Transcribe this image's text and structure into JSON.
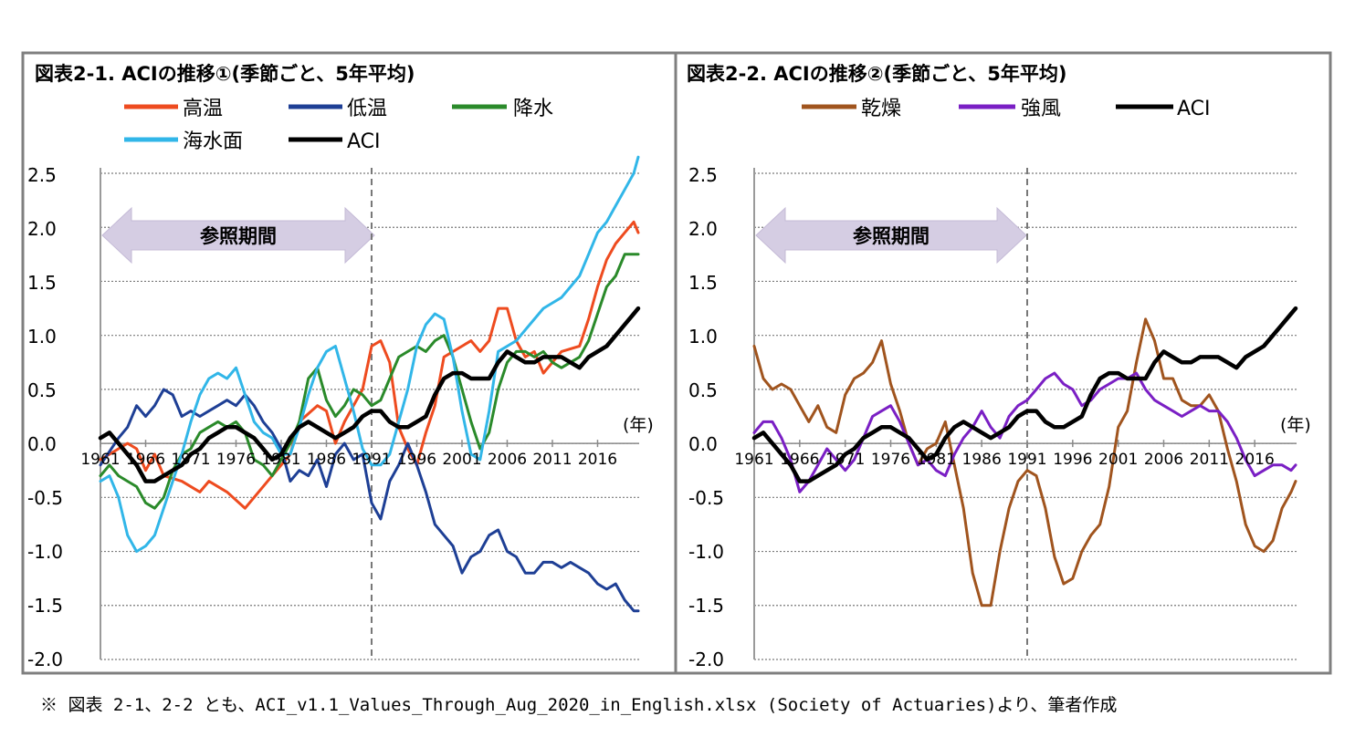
{
  "chart_data": [
    {
      "type": "line",
      "title": "図表2-1. ACIの推移①(季節ごと、5年平均)",
      "x_unit": "(年)",
      "x_ticks": [
        "1961",
        "1966",
        "1971",
        "1976",
        "1981",
        "1986",
        "1991",
        "1996",
        "2001",
        "2006",
        "2011",
        "2016"
      ],
      "xlim": [
        1961,
        2020.6
      ],
      "y_ticks": [
        "2.5",
        "2.0",
        "1.5",
        "1.0",
        "0.5",
        "0.0",
        "-0.5",
        "-1.0",
        "-1.5",
        "-2.0"
      ],
      "ylim": [
        -2.0,
        2.5
      ],
      "grid": true,
      "legend_position": "top-left",
      "reference_line_x": 1991,
      "reference_period": {
        "label": "参照期間",
        "from": 1961,
        "to": 1991
      },
      "series": [
        {
          "name": "高温",
          "color": "#ee4b1f",
          "x": [
            1961,
            1963,
            1964,
            1965,
            1966,
            1967,
            1968,
            1970,
            1972,
            1973,
            1975,
            1977,
            1978,
            1980,
            1982,
            1983,
            1985,
            1986,
            1987,
            1988,
            1990,
            1991,
            1992,
            1993,
            1994,
            1995,
            1996,
            1997,
            1998,
            1999,
            2001,
            2002,
            2003,
            2004,
            2005,
            2006,
            2007,
            2008,
            2009,
            2010,
            2011,
            2012,
            2014,
            2015,
            2016,
            2017,
            2018,
            2019,
            2020,
            2020.5
          ],
          "y": [
            -0.15,
            -0.05,
            0.0,
            -0.05,
            -0.25,
            -0.1,
            -0.3,
            -0.35,
            -0.45,
            -0.35,
            -0.45,
            -0.6,
            -0.5,
            -0.3,
            -0.1,
            0.2,
            0.35,
            0.3,
            0.0,
            0.2,
            0.5,
            0.9,
            0.95,
            0.75,
            0.15,
            -0.05,
            -0.2,
            0.1,
            0.35,
            0.8,
            0.9,
            0.95,
            0.85,
            0.95,
            1.25,
            1.25,
            0.95,
            0.8,
            0.85,
            0.65,
            0.75,
            0.85,
            0.9,
            1.15,
            1.45,
            1.7,
            1.85,
            1.95,
            2.05,
            1.95
          ]
        },
        {
          "name": "低温",
          "color": "#1e3f95",
          "x": [
            1961,
            1963,
            1964,
            1965,
            1966,
            1967,
            1968,
            1969,
            1970,
            1971,
            1972,
            1973,
            1974,
            1975,
            1976,
            1977,
            1978,
            1979,
            1980,
            1981,
            1982,
            1983,
            1984,
            1985,
            1986,
            1987,
            1988,
            1989,
            1990,
            1991,
            1992,
            1993,
            1994,
            1995,
            1996,
            1997,
            1998,
            1999,
            2000,
            2001,
            2002,
            2003,
            2004,
            2005,
            2006,
            2007,
            2008,
            2009,
            2010,
            2011,
            2012,
            2013,
            2014,
            2015,
            2016,
            2017,
            2018,
            2019,
            2020,
            2020.5
          ],
          "y": [
            -0.2,
            0.05,
            0.15,
            0.35,
            0.25,
            0.35,
            0.5,
            0.45,
            0.25,
            0.3,
            0.25,
            0.3,
            0.35,
            0.4,
            0.35,
            0.45,
            0.35,
            0.2,
            0.1,
            -0.05,
            -0.35,
            -0.25,
            -0.3,
            -0.15,
            -0.4,
            -0.1,
            0.0,
            -0.15,
            -0.1,
            -0.55,
            -0.7,
            -0.35,
            -0.2,
            0.0,
            -0.2,
            -0.45,
            -0.75,
            -0.85,
            -0.95,
            -1.2,
            -1.05,
            -1.0,
            -0.85,
            -0.8,
            -1.0,
            -1.05,
            -1.2,
            -1.2,
            -1.1,
            -1.1,
            -1.15,
            -1.1,
            -1.15,
            -1.2,
            -1.3,
            -1.35,
            -1.3,
            -1.45,
            -1.55,
            -1.55
          ]
        },
        {
          "name": "降水",
          "color": "#2a8a2a",
          "x": [
            1961,
            1962,
            1963,
            1964,
            1965,
            1966,
            1967,
            1968,
            1969,
            1970,
            1971,
            1972,
            1973,
            1974,
            1975,
            1976,
            1977,
            1978,
            1979,
            1980,
            1981,
            1982,
            1983,
            1984,
            1985,
            1986,
            1987,
            1988,
            1989,
            1990,
            1991,
            1992,
            1993,
            1994,
            1995,
            1996,
            1997,
            1998,
            1999,
            2000,
            2001,
            2002,
            2003,
            2004,
            2005,
            2006,
            2007,
            2008,
            2009,
            2010,
            2011,
            2012,
            2013,
            2014,
            2015,
            2016,
            2017,
            2018,
            2019,
            2020,
            2020.5
          ],
          "y": [
            -0.3,
            -0.2,
            -0.3,
            -0.35,
            -0.4,
            -0.55,
            -0.6,
            -0.5,
            -0.25,
            -0.1,
            -0.05,
            0.1,
            0.15,
            0.2,
            0.15,
            0.2,
            0.1,
            -0.15,
            -0.2,
            -0.3,
            -0.15,
            0.0,
            0.2,
            0.6,
            0.7,
            0.4,
            0.25,
            0.35,
            0.5,
            0.45,
            0.35,
            0.4,
            0.6,
            0.8,
            0.85,
            0.9,
            0.85,
            0.95,
            1.0,
            0.8,
            0.5,
            0.2,
            -0.05,
            0.1,
            0.5,
            0.75,
            0.85,
            0.85,
            0.8,
            0.85,
            0.75,
            0.7,
            0.75,
            0.8,
            0.95,
            1.2,
            1.45,
            1.55,
            1.75,
            1.75,
            1.75
          ]
        },
        {
          "name": "海水面",
          "color": "#31b6e8",
          "x": [
            1961,
            1962,
            1963,
            1964,
            1965,
            1966,
            1967,
            1968,
            1969,
            1970,
            1971,
            1972,
            1973,
            1974,
            1975,
            1976,
            1977,
            1978,
            1979,
            1980,
            1981,
            1982,
            1983,
            1984,
            1985,
            1986,
            1987,
            1988,
            1989,
            1990,
            1991,
            1992,
            1993,
            1994,
            1995,
            1996,
            1997,
            1998,
            1999,
            2000,
            2001,
            2002,
            2003,
            2004,
            2005,
            2006,
            2007,
            2008,
            2009,
            2010,
            2011,
            2012,
            2013,
            2014,
            2015,
            2016,
            2017,
            2018,
            2019,
            2020,
            2020.5
          ],
          "y": [
            -0.35,
            -0.3,
            -0.5,
            -0.85,
            -1.0,
            -0.95,
            -0.85,
            -0.6,
            -0.35,
            -0.1,
            0.2,
            0.45,
            0.6,
            0.65,
            0.6,
            0.7,
            0.45,
            0.2,
            0.1,
            0.05,
            -0.1,
            -0.1,
            0.15,
            0.45,
            0.7,
            0.85,
            0.9,
            0.6,
            0.3,
            -0.05,
            -0.2,
            -0.2,
            -0.1,
            0.2,
            0.5,
            0.9,
            1.1,
            1.2,
            1.15,
            0.8,
            0.3,
            -0.1,
            -0.15,
            0.3,
            0.85,
            0.9,
            0.95,
            1.05,
            1.15,
            1.25,
            1.3,
            1.35,
            1.45,
            1.55,
            1.75,
            1.95,
            2.05,
            2.2,
            2.35,
            2.5,
            2.65
          ]
        },
        {
          "name": "ACI",
          "color": "#000000",
          "x": [
            1961,
            1962,
            1963,
            1964,
            1965,
            1966,
            1967,
            1968,
            1969,
            1970,
            1971,
            1972,
            1973,
            1974,
            1975,
            1976,
            1977,
            1978,
            1979,
            1980,
            1981,
            1982,
            1983,
            1984,
            1985,
            1986,
            1987,
            1988,
            1989,
            1990,
            1991,
            1992,
            1993,
            1994,
            1995,
            1996,
            1997,
            1998,
            1999,
            2000,
            2001,
            2002,
            2003,
            2004,
            2005,
            2006,
            2007,
            2008,
            2009,
            2010,
            2011,
            2012,
            2013,
            2014,
            2015,
            2016,
            2017,
            2018,
            2019,
            2020,
            2020.5
          ],
          "y": [
            0.05,
            0.1,
            0.0,
            -0.1,
            -0.2,
            -0.35,
            -0.35,
            -0.3,
            -0.25,
            -0.2,
            -0.1,
            -0.05,
            0.05,
            0.1,
            0.15,
            0.15,
            0.1,
            0.05,
            -0.05,
            -0.15,
            -0.1,
            0.05,
            0.15,
            0.2,
            0.15,
            0.1,
            0.05,
            0.1,
            0.15,
            0.25,
            0.3,
            0.3,
            0.2,
            0.15,
            0.15,
            0.2,
            0.25,
            0.45,
            0.6,
            0.65,
            0.65,
            0.6,
            0.6,
            0.6,
            0.75,
            0.85,
            0.8,
            0.75,
            0.75,
            0.8,
            0.8,
            0.8,
            0.75,
            0.7,
            0.8,
            0.85,
            0.9,
            1.0,
            1.1,
            1.2,
            1.25
          ]
        }
      ]
    },
    {
      "type": "line",
      "title": "図表2-2. ACIの推移②(季節ごと、5年平均)",
      "x_unit": "(年)",
      "x_ticks": [
        "1961",
        "1966",
        "1971",
        "1976",
        "1981",
        "1986",
        "1991",
        "1996",
        "2001",
        "2006",
        "2011",
        "2016"
      ],
      "xlim": [
        1961,
        2020.6
      ],
      "y_ticks": [
        "2.5",
        "2.0",
        "1.5",
        "1.0",
        "0.5",
        "0.0",
        "-0.5",
        "-1.0",
        "-1.5",
        "-2.0"
      ],
      "ylim": [
        -2.0,
        2.5
      ],
      "grid": true,
      "legend_position": "top",
      "reference_line_x": 1991,
      "reference_period": {
        "label": "参照期間",
        "from": 1961,
        "to": 1991
      },
      "series": [
        {
          "name": "乾燥",
          "color": "#a0541e",
          "x": [
            1961,
            1962,
            1963,
            1964,
            1965,
            1966,
            1967,
            1968,
            1969,
            1970,
            1971,
            1972,
            1973,
            1974,
            1975,
            1976,
            1977,
            1978,
            1979,
            1980,
            1981,
            1982,
            1983,
            1984,
            1985,
            1986,
            1987,
            1988,
            1989,
            1990,
            1991,
            1992,
            1993,
            1994,
            1995,
            1996,
            1997,
            1998,
            1999,
            2000,
            2001,
            2002,
            2003,
            2004,
            2005,
            2006,
            2007,
            2008,
            2009,
            2010,
            2011,
            2012,
            2013,
            2014,
            2015,
            2016,
            2017,
            2018,
            2019,
            2020,
            2020.5
          ],
          "y": [
            0.9,
            0.6,
            0.5,
            0.55,
            0.5,
            0.35,
            0.2,
            0.35,
            0.15,
            0.1,
            0.45,
            0.6,
            0.65,
            0.75,
            0.95,
            0.55,
            0.3,
            0.0,
            -0.2,
            -0.05,
            0.0,
            0.2,
            -0.2,
            -0.6,
            -1.2,
            -1.5,
            -1.5,
            -1.0,
            -0.6,
            -0.35,
            -0.25,
            -0.3,
            -0.6,
            -1.05,
            -1.3,
            -1.25,
            -1.0,
            -0.85,
            -0.75,
            -0.4,
            0.15,
            0.3,
            0.75,
            1.15,
            0.95,
            0.6,
            0.6,
            0.4,
            0.35,
            0.35,
            0.45,
            0.3,
            -0.05,
            -0.35,
            -0.75,
            -0.95,
            -1.0,
            -0.9,
            -0.6,
            -0.45,
            -0.35
          ]
        },
        {
          "name": "強風",
          "color": "#7a1fc4",
          "x": [
            1961,
            1962,
            1963,
            1964,
            1965,
            1966,
            1967,
            1968,
            1969,
            1970,
            1971,
            1972,
            1973,
            1974,
            1975,
            1976,
            1977,
            1978,
            1979,
            1980,
            1981,
            1982,
            1983,
            1984,
            1985,
            1986,
            1987,
            1988,
            1989,
            1990,
            1991,
            1992,
            1993,
            1994,
            1995,
            1996,
            1997,
            1998,
            1999,
            2000,
            2001,
            2002,
            2003,
            2004,
            2005,
            2006,
            2007,
            2008,
            2009,
            2010,
            2011,
            2012,
            2013,
            2014,
            2015,
            2016,
            2017,
            2018,
            2019,
            2020,
            2020.5
          ],
          "y": [
            0.1,
            0.2,
            0.2,
            0.05,
            -0.15,
            -0.45,
            -0.35,
            -0.2,
            -0.05,
            -0.15,
            -0.25,
            -0.15,
            0.05,
            0.25,
            0.3,
            0.35,
            0.2,
            0.0,
            -0.2,
            -0.15,
            -0.25,
            -0.3,
            -0.1,
            0.05,
            0.15,
            0.3,
            0.15,
            0.05,
            0.25,
            0.35,
            0.4,
            0.5,
            0.6,
            0.65,
            0.55,
            0.5,
            0.35,
            0.4,
            0.5,
            0.55,
            0.6,
            0.6,
            0.65,
            0.5,
            0.4,
            0.35,
            0.3,
            0.25,
            0.3,
            0.35,
            0.3,
            0.3,
            0.2,
            0.05,
            -0.15,
            -0.3,
            -0.25,
            -0.2,
            -0.2,
            -0.25,
            -0.2
          ]
        },
        {
          "name": "ACI",
          "color": "#000000",
          "x": [
            1961,
            1962,
            1963,
            1964,
            1965,
            1966,
            1967,
            1968,
            1969,
            1970,
            1971,
            1972,
            1973,
            1974,
            1975,
            1976,
            1977,
            1978,
            1979,
            1980,
            1981,
            1982,
            1983,
            1984,
            1985,
            1986,
            1987,
            1988,
            1989,
            1990,
            1991,
            1992,
            1993,
            1994,
            1995,
            1996,
            1997,
            1998,
            1999,
            2000,
            2001,
            2002,
            2003,
            2004,
            2005,
            2006,
            2007,
            2008,
            2009,
            2010,
            2011,
            2012,
            2013,
            2014,
            2015,
            2016,
            2017,
            2018,
            2019,
            2020,
            2020.5
          ],
          "y": [
            0.05,
            0.1,
            0.0,
            -0.1,
            -0.2,
            -0.35,
            -0.35,
            -0.3,
            -0.25,
            -0.2,
            -0.1,
            -0.05,
            0.05,
            0.1,
            0.15,
            0.15,
            0.1,
            0.05,
            -0.05,
            -0.15,
            -0.1,
            0.05,
            0.15,
            0.2,
            0.15,
            0.1,
            0.05,
            0.1,
            0.15,
            0.25,
            0.3,
            0.3,
            0.2,
            0.15,
            0.15,
            0.2,
            0.25,
            0.45,
            0.6,
            0.65,
            0.65,
            0.6,
            0.6,
            0.6,
            0.75,
            0.85,
            0.8,
            0.75,
            0.75,
            0.8,
            0.8,
            0.8,
            0.75,
            0.7,
            0.8,
            0.85,
            0.9,
            1.0,
            1.1,
            1.2,
            1.25
          ]
        }
      ]
    }
  ],
  "footnote": "※ 図表 2-1、2-2 とも、ACI_v1.1_Values_Through_Aug_2020_in_English.xlsx (Society of Actuaries)より、筆者作成"
}
